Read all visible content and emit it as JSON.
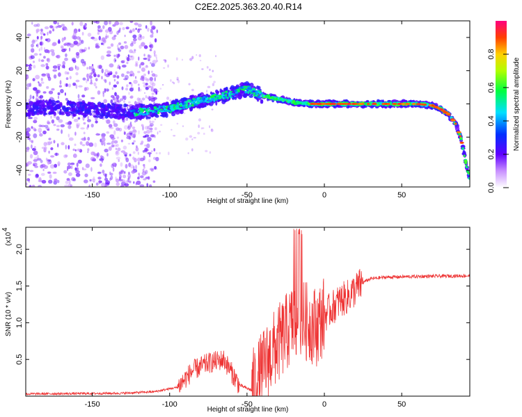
{
  "title": "C2E2.2025.363.20.40.R14",
  "chart_data": [
    {
      "id": "spectrogram",
      "type": "heatmap",
      "xlabel": "Height of straight line (km)",
      "ylabel": "Frequency (Hz)",
      "xlim": [
        -193,
        94
      ],
      "ylim": [
        -50,
        50
      ],
      "xticks": [
        -150,
        -100,
        -50,
        0,
        50
      ],
      "yticks": [
        -40,
        -20,
        0,
        20,
        40
      ],
      "colorbar": {
        "label": "Normalized spectral amplitude",
        "range": [
          0,
          1
        ],
        "ticks": [
          0.0,
          0.2,
          0.4,
          0.6,
          0.8
        ]
      },
      "ridge": {
        "x": [
          -193,
          -180,
          -160,
          -140,
          -120,
          -100,
          -80,
          -60,
          -50,
          -45,
          -40,
          -30,
          -20,
          -10,
          0,
          10,
          20,
          40,
          60,
          70,
          75,
          80,
          85,
          88,
          90,
          92,
          94
        ],
        "y": [
          -3,
          -2,
          -3,
          -4,
          -5,
          -3,
          2,
          6,
          9,
          7,
          5,
          3,
          1,
          0,
          0,
          0,
          0,
          0,
          0,
          -1,
          -3,
          -6,
          -12,
          -20,
          -28,
          -38,
          -45
        ]
      }
    },
    {
      "id": "snr",
      "type": "line",
      "xlabel": "Height of straight line (km)",
      "ylabel": "SNR (10 * v/v)",
      "yscale_note": "(x10",
      "yscale_exp": "4",
      "xlim": [
        -193,
        94
      ],
      "ylim": [
        0,
        2.3
      ],
      "xticks": [
        -150,
        -100,
        -50,
        0,
        50
      ],
      "yticks": [
        0.5,
        1.0,
        1.5,
        2.0
      ],
      "ytick_labels": [
        "0.5",
        "1.0",
        "1.5",
        "2.0"
      ],
      "color": "#ee3333",
      "envelope": {
        "x": [
          -193,
          -130,
          -110,
          -95,
          -85,
          -75,
          -65,
          -55,
          -47,
          -40,
          -35,
          -30,
          -25,
          -20,
          -15,
          -10,
          -5,
          0,
          5,
          10,
          15,
          20,
          25,
          30,
          40,
          60,
          94
        ],
        "y": [
          0.03,
          0.04,
          0.06,
          0.12,
          0.35,
          0.45,
          0.5,
          0.15,
          0.08,
          0.35,
          0.55,
          0.7,
          0.85,
          1.0,
          1.05,
          1.0,
          0.95,
          1.1,
          1.2,
          1.3,
          1.35,
          1.45,
          1.55,
          1.6,
          1.62,
          1.63,
          1.64
        ]
      }
    }
  ]
}
